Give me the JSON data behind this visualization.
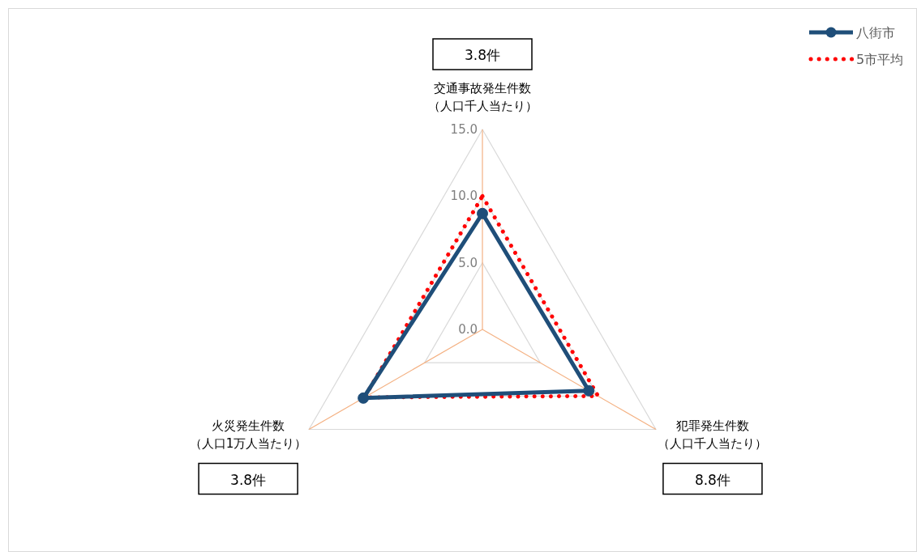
{
  "chart_data": {
    "type": "radar",
    "categories": [
      "交通事故発生件数（人口千人当たり）",
      "犯罪発生件数（人口千人当たり）",
      "火災発生件数（人口1万人当たり）"
    ],
    "series": [
      {
        "name": "八街市",
        "color": "#1f4e79",
        "values": [
          8.7,
          9.2,
          10.3
        ],
        "marker": "circle",
        "line_style": "solid"
      },
      {
        "name": "5市平均",
        "color": "#ff0000",
        "values": [
          10.0,
          10.0,
          10.2
        ],
        "marker": "none",
        "line_style": "dotted"
      }
    ],
    "ylim": [
      0,
      15
    ],
    "yticks": [
      {
        "value": 0,
        "label": "0.0"
      },
      {
        "value": 5,
        "label": "5.0"
      },
      {
        "value": 10,
        "label": "10.0"
      },
      {
        "value": 15,
        "label": "15.0"
      }
    ],
    "legend": "top right",
    "annotations": [
      "3.8件",
      "8.8件",
      "3.8件"
    ]
  }
}
